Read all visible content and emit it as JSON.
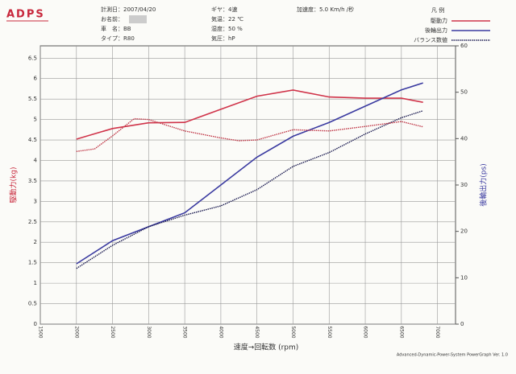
{
  "header": {
    "logo": "ADPS",
    "date": "計測日：2007/04/20",
    "name": "お名前：",
    "car": "車　名：BB",
    "type": "タイプ：R80",
    "gear": "ギヤ：4速",
    "temp": "気温：22 ℃",
    "humidity": "湿度：50 %",
    "pressure": "気圧：hP",
    "accel": "加速度：5.0 Km/h /秒",
    "legend_title": "凡 例",
    "footer": "Advanced-Dynamic-Power-System PowerGraph Ver. 1.0"
  },
  "chart_data": {
    "type": "line",
    "x_label": "速度→回転数 (rpm)",
    "y_label": "駆動力(kg)",
    "y2_label": "後輪出力(ps)",
    "xlim": [
      1500,
      7250
    ],
    "xticks": [
      1500,
      2000,
      2500,
      3000,
      3500,
      4000,
      4500,
      5000,
      5500,
      6000,
      6500,
      7000
    ],
    "ylim": [
      0,
      6.8
    ],
    "yticks": [
      0,
      0.5,
      1,
      1.5,
      2,
      2.5,
      3,
      3.5,
      4,
      4.5,
      5,
      5.5,
      6,
      6.5
    ],
    "y2lim": [
      0,
      60
    ],
    "y2ticks": [
      0,
      10,
      20,
      30,
      40,
      50,
      60
    ],
    "grid": true,
    "series": [
      {
        "name": "駆動力",
        "color": "#d0344a",
        "dash": false,
        "x": [
          2000,
          2500,
          3000,
          3500,
          4000,
          4500,
          5000,
          5500,
          6000,
          6500,
          6800
        ],
        "values": [
          4.52,
          4.78,
          4.92,
          4.93,
          5.25,
          5.57,
          5.72,
          5.55,
          5.52,
          5.52,
          5.42
        ]
      },
      {
        "name": "後輪出力",
        "color": "#3a3aa0",
        "dash": false,
        "axis": "y2",
        "x": [
          2000,
          2500,
          3000,
          3500,
          4000,
          4500,
          5000,
          5500,
          6000,
          6500,
          6800
        ],
        "values": [
          13,
          18,
          21,
          24,
          30,
          36,
          40.5,
          43.5,
          47,
          50.5,
          52
        ]
      },
      {
        "name": "バランス数値",
        "color": "#1a1a50",
        "dash": true,
        "axis": "y2",
        "x": [
          2000,
          2500,
          3000,
          3500,
          4000,
          4500,
          5000,
          5500,
          6000,
          6500,
          6800
        ],
        "values": [
          12,
          17,
          21,
          23.5,
          25.5,
          29,
          34,
          37,
          41,
          44.5,
          46
        ]
      },
      {
        "color": "#c03848",
        "dash": true,
        "x": [
          2000,
          2250,
          2500,
          2800,
          3000,
          3500,
          4000,
          4250,
          4500,
          5000,
          5500,
          6000,
          6500,
          6800
        ],
        "values": [
          4.22,
          4.28,
          4.6,
          5.02,
          5.0,
          4.72,
          4.55,
          4.48,
          4.5,
          4.75,
          4.72,
          4.83,
          4.95,
          4.82
        ]
      }
    ]
  }
}
